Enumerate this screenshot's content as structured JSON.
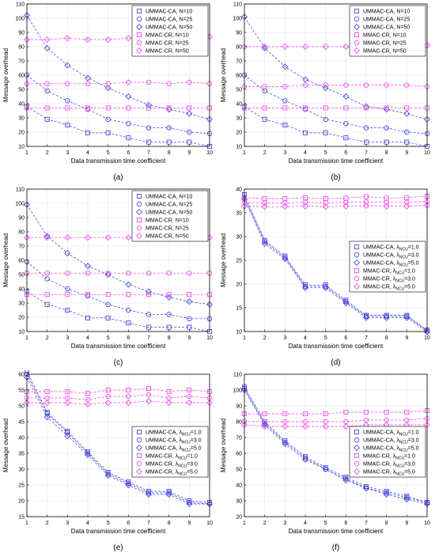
{
  "colors": {
    "blue": "#3b3bd8",
    "magenta": "#ee3fee"
  },
  "chart_data": [
    {
      "type": "line",
      "caption": "(a)",
      "xlabel": "Data transmission time coefficient",
      "ylabel": "Message overhead",
      "xlim": [
        1,
        10
      ],
      "ylim": [
        10,
        110
      ],
      "xticks": [
        1,
        2,
        3,
        4,
        5,
        6,
        7,
        8,
        9,
        10
      ],
      "yticks": [
        10,
        20,
        30,
        40,
        50,
        60,
        70,
        80,
        90,
        100,
        110
      ],
      "grid": true,
      "legend_position": "top-right",
      "x": [
        1,
        2,
        3,
        4,
        5,
        6,
        7,
        8,
        9,
        10
      ],
      "series": [
        {
          "name": "UMMAC-CA, N=10",
          "marker": "square",
          "color": "#3b3bd8",
          "values": [
            38,
            29,
            25,
            19.5,
            19.5,
            16,
            13,
            13,
            13,
            10
          ]
        },
        {
          "name": "UMMAC-CA, N=25",
          "marker": "circle",
          "color": "#3b3bd8",
          "values": [
            60,
            49,
            42,
            36,
            29,
            26,
            23,
            23,
            20,
            19
          ]
        },
        {
          "name": "UMMAC-CA, N=50",
          "marker": "diamond",
          "color": "#3b3bd8",
          "values": [
            102,
            79,
            67,
            58,
            51,
            45,
            39,
            36,
            33,
            29
          ]
        },
        {
          "name": "MMAC-CR, N=10",
          "marker": "square",
          "color": "#ee3fee",
          "values": [
            37,
            37,
            37,
            37,
            37,
            37,
            37,
            37,
            37,
            37
          ]
        },
        {
          "name": "MMAC-CR, N=25",
          "marker": "circle",
          "color": "#ee3fee",
          "values": [
            54,
            54,
            54,
            54,
            54,
            55,
            55,
            54,
            55,
            54
          ]
        },
        {
          "name": "MMAC-CR, N=50",
          "marker": "diamond",
          "color": "#ee3fee",
          "values": [
            85,
            85,
            86,
            85,
            85,
            86,
            86,
            86,
            86,
            87
          ]
        }
      ]
    },
    {
      "type": "line",
      "caption": "(b)",
      "xlabel": "Data transmission time coefficient",
      "ylabel": "Message overhead",
      "xlim": [
        1,
        10
      ],
      "ylim": [
        10,
        110
      ],
      "xticks": [
        1,
        2,
        3,
        4,
        5,
        6,
        7,
        8,
        9,
        10
      ],
      "yticks": [
        10,
        20,
        30,
        40,
        50,
        60,
        70,
        80,
        90,
        100,
        110
      ],
      "grid": true,
      "legend_position": "top-right",
      "x": [
        1,
        2,
        3,
        4,
        5,
        6,
        7,
        8,
        9,
        10
      ],
      "series": [
        {
          "name": "UMMAC-CA, N=10",
          "marker": "square",
          "color": "#3b3bd8",
          "values": [
            38,
            29,
            25,
            19.5,
            19.5,
            16,
            13,
            13,
            13,
            10
          ]
        },
        {
          "name": "UMMAC-CA, N=25",
          "marker": "circle",
          "color": "#3b3bd8",
          "values": [
            60,
            49,
            42,
            36,
            29,
            26,
            23,
            23,
            20,
            19
          ]
        },
        {
          "name": "UMMAC-CA, N=50",
          "marker": "diamond",
          "color": "#3b3bd8",
          "values": [
            101,
            79,
            66,
            57,
            51,
            45,
            38,
            36,
            33,
            29
          ]
        },
        {
          "name": "MMAC-CR, N=10",
          "marker": "square",
          "color": "#ee3fee",
          "values": [
            37,
            37,
            37,
            37,
            37,
            37,
            37,
            37,
            37,
            37
          ]
        },
        {
          "name": "MMAC-CR, N=25",
          "marker": "circle",
          "color": "#ee3fee",
          "values": [
            52,
            52,
            52,
            53,
            53,
            53,
            53,
            53,
            53,
            52
          ]
        },
        {
          "name": "MMAC-CR, N=50",
          "marker": "diamond",
          "color": "#ee3fee",
          "values": [
            80,
            80,
            80,
            80,
            80,
            80,
            80,
            81,
            81,
            81
          ]
        }
      ]
    },
    {
      "type": "line",
      "caption": "(c)",
      "xlabel": "Data transmission time coefficient",
      "ylabel": "Message overhead",
      "xlim": [
        1,
        10
      ],
      "ylim": [
        10,
        110
      ],
      "xticks": [
        1,
        2,
        3,
        4,
        5,
        6,
        7,
        8,
        9,
        10
      ],
      "yticks": [
        10,
        20,
        30,
        40,
        50,
        60,
        70,
        80,
        90,
        100,
        110
      ],
      "grid": true,
      "legend_position": "top-right",
      "x": [
        1,
        2,
        3,
        4,
        5,
        6,
        7,
        8,
        9,
        10
      ],
      "series": [
        {
          "name": "UMMAC-CA, N=10",
          "marker": "square",
          "color": "#3b3bd8",
          "values": [
            38,
            29,
            25,
            19.5,
            19.5,
            16,
            13,
            13,
            13,
            10
          ]
        },
        {
          "name": "UMMAC-CA, N=25",
          "marker": "circle",
          "color": "#3b3bd8",
          "values": [
            59,
            47,
            40,
            35,
            29,
            25,
            22,
            22,
            19,
            19
          ]
        },
        {
          "name": "UMMAC-CA, N=50",
          "marker": "diamond",
          "color": "#3b3bd8",
          "values": [
            99,
            77,
            65,
            56,
            50,
            43,
            38,
            34,
            31,
            29
          ]
        },
        {
          "name": "MMAC-CR, N=10",
          "marker": "square",
          "color": "#ee3fee",
          "values": [
            36,
            36,
            36,
            36,
            36,
            36,
            36,
            36,
            36,
            36
          ]
        },
        {
          "name": "MMAC-CR, N=25",
          "marker": "circle",
          "color": "#ee3fee",
          "values": [
            51,
            51,
            51,
            51,
            51,
            51,
            51,
            51,
            51,
            51
          ]
        },
        {
          "name": "MMAC-CR, N=50",
          "marker": "diamond",
          "color": "#ee3fee",
          "values": [
            76,
            76,
            76,
            76,
            76,
            76,
            76,
            76,
            76,
            76
          ]
        }
      ]
    },
    {
      "type": "line",
      "caption": "(d)",
      "xlabel": "Data transmission time coefficient",
      "ylabel": "Message overhead",
      "xlim": [
        1,
        10
      ],
      "ylim": [
        10,
        40
      ],
      "xticks": [
        1,
        2,
        3,
        4,
        5,
        6,
        7,
        8,
        9,
        10
      ],
      "yticks": [
        10,
        15,
        20,
        25,
        30,
        35,
        40
      ],
      "grid": true,
      "legend_position": "center-right",
      "x": [
        1,
        2,
        3,
        4,
        5,
        6,
        7,
        8,
        9,
        10
      ],
      "series": [
        {
          "name_prefix": "UMMAC-CA, λ",
          "name_sub": "NCU",
          "name_suffix": "=1.0",
          "marker": "square",
          "color": "#3b3bd8",
          "values": [
            38.8,
            29.2,
            25.9,
            19.8,
            19.8,
            16.6,
            13.4,
            13.4,
            13.4,
            10.3
          ]
        },
        {
          "name_prefix": "UMMAC-CA, λ",
          "name_sub": "NCU",
          "name_suffix": "=3.0",
          "marker": "circle",
          "color": "#3b3bd8",
          "values": [
            38.3,
            28.9,
            25.6,
            19.5,
            19.5,
            16.3,
            13.2,
            13.2,
            13.2,
            10.1
          ]
        },
        {
          "name_prefix": "UMMAC-CA, λ",
          "name_sub": "NCU",
          "name_suffix": "=5.0",
          "marker": "diamond",
          "color": "#3b3bd8",
          "values": [
            37.9,
            28.5,
            25.3,
            19.2,
            19.2,
            16.0,
            12.9,
            12.9,
            12.9,
            9.9
          ]
        },
        {
          "name_prefix": "MMAC-CR, λ",
          "name_sub": "NCU",
          "name_suffix": "=1.0",
          "marker": "square",
          "color": "#ee3fee",
          "values": [
            38.2,
            38.0,
            38.0,
            38.2,
            38.0,
            38.1,
            38.4,
            38.1,
            38.2,
            38.5
          ]
        },
        {
          "name_prefix": "MMAC-CR, λ",
          "name_sub": "NCU",
          "name_suffix": "=3.0",
          "marker": "circle",
          "color": "#ee3fee",
          "values": [
            37.2,
            37.1,
            37.1,
            37.2,
            37.1,
            37.2,
            37.3,
            37.2,
            37.2,
            37.4
          ]
        },
        {
          "name_prefix": "MMAC-CR, λ",
          "name_sub": "NCU",
          "name_suffix": "=5.0",
          "marker": "diamond",
          "color": "#ee3fee",
          "values": [
            36.4,
            36.3,
            36.3,
            36.4,
            36.3,
            36.4,
            36.5,
            36.4,
            36.4,
            36.6
          ]
        }
      ]
    },
    {
      "type": "line",
      "caption": "(e)",
      "xlabel": "Data transmission time coefficient",
      "ylabel": "Message overhead",
      "xlim": [
        1,
        10
      ],
      "ylim": [
        15,
        60
      ],
      "xticks": [
        1,
        2,
        3,
        4,
        5,
        6,
        7,
        8,
        9,
        10
      ],
      "yticks": [
        15,
        20,
        25,
        30,
        35,
        40,
        45,
        50,
        55,
        60
      ],
      "grid": true,
      "legend_position": "center-right",
      "x": [
        1,
        2,
        3,
        4,
        5,
        6,
        7,
        8,
        9,
        10
      ],
      "series": [
        {
          "name_prefix": "UMMAC-CA, λ",
          "name_sub": "NCU",
          "name_suffix": "=1.0",
          "marker": "square",
          "color": "#3b3bd8",
          "values": [
            61,
            48,
            42,
            35.5,
            29,
            26,
            23,
            23,
            20,
            19.5
          ]
        },
        {
          "name_prefix": "UMMAC-CA, λ",
          "name_sub": "NCU",
          "name_suffix": "=3.0",
          "marker": "circle",
          "color": "#3b3bd8",
          "values": [
            60,
            47.5,
            41.5,
            35,
            28.5,
            25.5,
            22.5,
            22.5,
            19.5,
            19
          ]
        },
        {
          "name_prefix": "UMMAC-CA, λ",
          "name_sub": "NCU",
          "name_suffix": "=5.0",
          "marker": "diamond",
          "color": "#3b3bd8",
          "values": [
            59,
            46.5,
            40.5,
            34.5,
            28,
            25,
            22,
            22,
            19,
            19
          ]
        },
        {
          "name_prefix": "MMAC-CR, λ",
          "name_sub": "NCU",
          "name_suffix": "=1.0",
          "marker": "square",
          "color": "#ee3fee",
          "values": [
            54.5,
            54.5,
            54.5,
            54,
            55,
            55,
            55.5,
            54.5,
            55,
            54.5
          ]
        },
        {
          "name_prefix": "MMAC-CR, λ",
          "name_sub": "NCU",
          "name_suffix": "=3.0",
          "marker": "circle",
          "color": "#ee3fee",
          "values": [
            52.5,
            52.5,
            52.5,
            52,
            53,
            53,
            53.5,
            52.5,
            53,
            52.5
          ]
        },
        {
          "name_prefix": "MMAC-CR, λ",
          "name_sub": "NCU",
          "name_suffix": "=5.0",
          "marker": "diamond",
          "color": "#ee3fee",
          "values": [
            51,
            51,
            51,
            50.5,
            51,
            51,
            51.5,
            51,
            51,
            51
          ]
        }
      ]
    },
    {
      "type": "line",
      "caption": "(f)",
      "xlabel": "Data transmission time coefficient",
      "ylabel": "Message overhead",
      "xlim": [
        1,
        10
      ],
      "ylim": [
        20,
        110
      ],
      "xticks": [
        1,
        2,
        3,
        4,
        5,
        6,
        7,
        8,
        9,
        10
      ],
      "yticks": [
        20,
        30,
        40,
        50,
        60,
        70,
        80,
        90,
        100,
        110
      ],
      "grid": true,
      "legend_position": "center-right",
      "x": [
        1,
        2,
        3,
        4,
        5,
        6,
        7,
        8,
        9,
        10
      ],
      "series": [
        {
          "name_prefix": "UMMAC-CA, λ",
          "name_sub": "NCU",
          "name_suffix": "=1.0",
          "marker": "square",
          "color": "#3b3bd8",
          "values": [
            102,
            80,
            68,
            58,
            51,
            45,
            39,
            36,
            33,
            29
          ]
        },
        {
          "name_prefix": "UMMAC-CA, λ",
          "name_sub": "NCU",
          "name_suffix": "=3.0",
          "marker": "circle",
          "color": "#3b3bd8",
          "values": [
            101,
            79,
            67,
            57,
            50,
            44,
            38,
            35,
            32,
            29
          ]
        },
        {
          "name_prefix": "UMMAC-CA, λ",
          "name_sub": "NCU",
          "name_suffix": "=5.0",
          "marker": "diamond",
          "color": "#3b3bd8",
          "values": [
            100,
            78,
            66,
            56,
            50,
            43,
            38,
            34,
            31,
            28
          ]
        },
        {
          "name_prefix": "MMAC-CR, λ",
          "name_sub": "NCU",
          "name_suffix": "=1.0",
          "marker": "square",
          "color": "#ee3fee",
          "values": [
            85,
            85,
            85,
            85,
            85,
            86,
            86,
            86,
            86,
            87
          ]
        },
        {
          "name_prefix": "MMAC-CR, λ",
          "name_sub": "NCU",
          "name_suffix": "=3.0",
          "marker": "circle",
          "color": "#ee3fee",
          "values": [
            80,
            80,
            80,
            80,
            80,
            80,
            81,
            81,
            81,
            82
          ]
        },
        {
          "name_prefix": "MMAC-CR, λ",
          "name_sub": "NCU",
          "name_suffix": "=5.0",
          "marker": "diamond",
          "color": "#ee3fee",
          "values": [
            78,
            77,
            77,
            77,
            77,
            77,
            78,
            78,
            78,
            78
          ]
        }
      ]
    }
  ]
}
